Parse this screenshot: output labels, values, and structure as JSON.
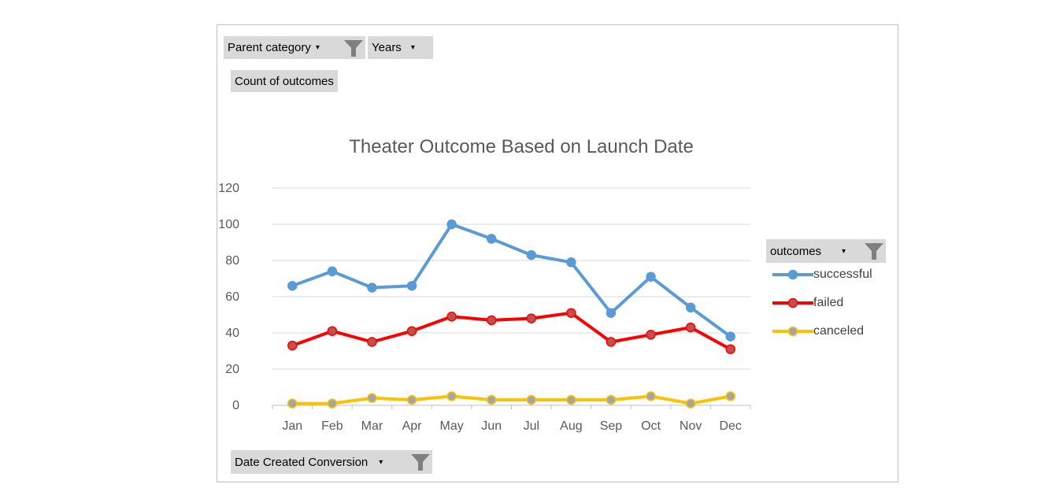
{
  "filters": {
    "parent_category": "Parent category",
    "years": "Years",
    "count_of_outcomes": "Count of outcomes",
    "date_created_conversion": "Date Created Conversion",
    "outcomes": "outcomes"
  },
  "chart_data": {
    "type": "line",
    "title": "Theater Outcome Based on Launch Date",
    "categories": [
      "Jan",
      "Feb",
      "Mar",
      "Apr",
      "May",
      "Jun",
      "Jul",
      "Aug",
      "Sep",
      "Oct",
      "Nov",
      "Dec"
    ],
    "ylim": [
      0,
      120
    ],
    "yticks": [
      0,
      20,
      40,
      60,
      80,
      100,
      120
    ],
    "grid": true,
    "legend_position": "right",
    "series": [
      {
        "name": "successful",
        "color": "#5b9bd5",
        "marker_fill": "#5b9bd5",
        "values": [
          66,
          74,
          65,
          66,
          100,
          92,
          83,
          79,
          51,
          71,
          54,
          38
        ]
      },
      {
        "name": "failed",
        "color": "#ff0000",
        "marker_fill": "#c0504d",
        "values": [
          33,
          41,
          35,
          41,
          49,
          47,
          48,
          51,
          35,
          39,
          43,
          31
        ]
      },
      {
        "name": "canceled",
        "color": "#ffc000",
        "marker_fill": "#a5a5a5",
        "values": [
          1,
          1,
          4,
          3,
          5,
          3,
          3,
          3,
          3,
          5,
          1,
          5
        ]
      }
    ]
  }
}
